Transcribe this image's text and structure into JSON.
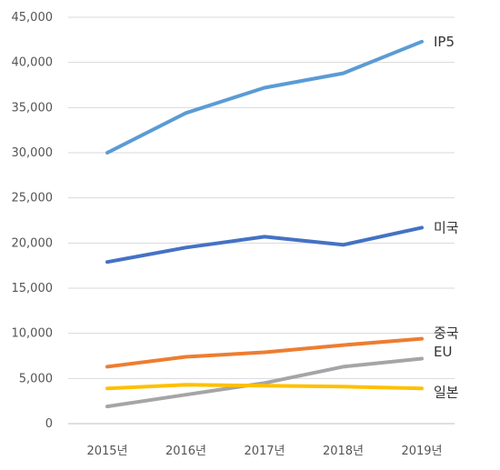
{
  "chart_data": {
    "type": "line",
    "categories": [
      "2015년",
      "2016년",
      "2017년",
      "2018년",
      "2019년"
    ],
    "ylim": [
      0,
      45000
    ],
    "yticks": [
      0,
      5000,
      10000,
      15000,
      20000,
      25000,
      30000,
      35000,
      40000,
      45000
    ],
    "ytick_labels": [
      "0",
      "5,000",
      "10,000",
      "15,000",
      "20,000",
      "25,000",
      "30,000",
      "35,000",
      "40,000",
      "45,000"
    ],
    "grid": true,
    "legend": "end-of-line labels",
    "series": [
      {
        "name": "IP5",
        "color": "#5B9BD5",
        "values": [
          30000,
          34400,
          37200,
          38800,
          42300
        ]
      },
      {
        "name": "미국",
        "color": "#4472C4",
        "values": [
          17900,
          19500,
          20700,
          19800,
          21700
        ]
      },
      {
        "name": "중국",
        "color": "#ED7D31",
        "values": [
          6300,
          7400,
          7900,
          8700,
          9400
        ]
      },
      {
        "name": "EU",
        "color": "#A5A5A5",
        "values": [
          1900,
          3200,
          4500,
          6300,
          7200
        ]
      },
      {
        "name": "일본",
        "color": "#FFC000",
        "values": [
          3900,
          4300,
          4200,
          4100,
          3900
        ]
      }
    ]
  }
}
